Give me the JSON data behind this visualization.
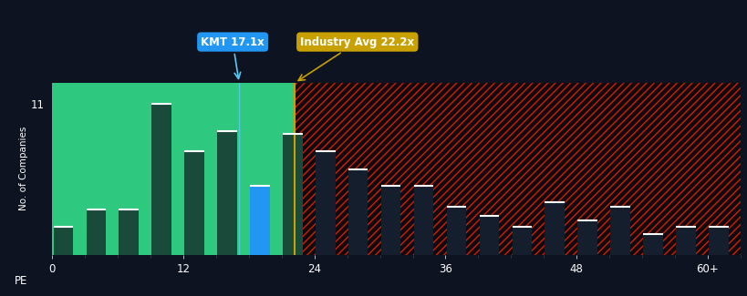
{
  "background_color": "#0d1321",
  "plot_bg_color": "#0d1321",
  "green_bg_color": "#2ec97e",
  "bar_color_left": "#1a4a3a",
  "bar_color_right": "#151e2d",
  "blue_bar_color": "#2196F3",
  "kmt_line_color": "#5bc8f5",
  "industry_line_color": "#c8a000",
  "kmt_label": "KMT 17.1x",
  "industry_label": "Industry Avg 22.2x",
  "kmt_box_color": "#2196F3",
  "industry_box_color": "#c8a000",
  "ylabel": "No. of Companies",
  "xlabel_prefix": "PE",
  "kmt_value": 17.1,
  "industry_value": 22.2,
  "bars": [
    {
      "x": 1,
      "height": 2.0
    },
    {
      "x": 4,
      "height": 3.3
    },
    {
      "x": 7,
      "height": 3.3
    },
    {
      "x": 10,
      "height": 11.0
    },
    {
      "x": 13,
      "height": 7.5
    },
    {
      "x": 16,
      "height": 9.0
    },
    {
      "x": 19,
      "height": 5.0
    },
    {
      "x": 22,
      "height": 8.8
    },
    {
      "x": 25,
      "height": 7.5
    },
    {
      "x": 28,
      "height": 6.2
    },
    {
      "x": 31,
      "height": 5.0
    },
    {
      "x": 34,
      "height": 5.0
    },
    {
      "x": 37,
      "height": 3.5
    },
    {
      "x": 40,
      "height": 2.8
    },
    {
      "x": 43,
      "height": 2.0
    },
    {
      "x": 46,
      "height": 3.8
    },
    {
      "x": 49,
      "height": 2.5
    },
    {
      "x": 52,
      "height": 3.5
    },
    {
      "x": 55,
      "height": 1.5
    },
    {
      "x": 58,
      "height": 2.0
    },
    {
      "x": 61,
      "height": 2.0
    }
  ],
  "kmt_bar_x": 19,
  "xtick_positions": [
    0,
    12,
    24,
    36,
    48,
    60
  ],
  "xtick_labels": [
    "0",
    "12",
    "24",
    "36",
    "48",
    "60+"
  ],
  "ytick_positions": [
    11
  ],
  "ytick_labels": [
    "11"
  ],
  "ylim": [
    0,
    12.5
  ],
  "xlim": [
    0,
    63
  ],
  "bar_width": 1.8,
  "hatch_density": "////",
  "hatch_color": "#cc2200",
  "hatch_bg": "#120810"
}
